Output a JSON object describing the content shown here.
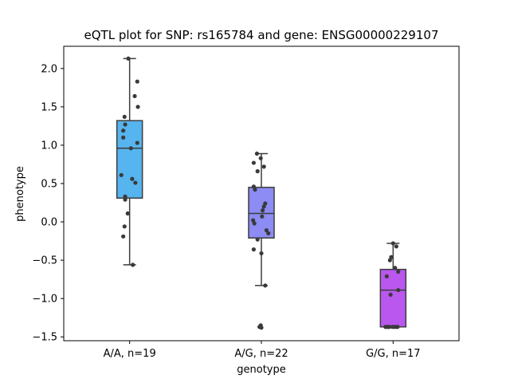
{
  "chart_data": {
    "type": "box",
    "title": "eQTL plot for SNP: rs165784 and gene: ENSG00000229107",
    "xlabel": "genotype",
    "ylabel": "phenotype",
    "categories": [
      "A/A, n=19",
      "A/G, n=22",
      "G/G, n=17"
    ],
    "ylim": [
      -1.55,
      2.29
    ],
    "yticks": [
      -1.5,
      -1.0,
      -0.5,
      0.0,
      0.5,
      1.0,
      1.5,
      2.0
    ],
    "ytick_labels": [
      "−1.5",
      "−1.0",
      "−0.5",
      "0.0",
      "0.5",
      "1.0",
      "1.5",
      "2.0"
    ],
    "grid": false,
    "legend": "none",
    "boxes": [
      {
        "category": "A/A, n=19",
        "color": "#56b4ee",
        "whisker_low": -0.56,
        "q1": 0.31,
        "median": 0.96,
        "q3": 1.32,
        "whisker_high": 2.13,
        "points": [
          {
            "x": -0.02,
            "y": 2.13
          },
          {
            "x": 0.12,
            "y": 1.83
          },
          {
            "x": 0.08,
            "y": 1.64
          },
          {
            "x": 0.13,
            "y": 1.5
          },
          {
            "x": -0.08,
            "y": 1.37
          },
          {
            "x": -0.07,
            "y": 1.27
          },
          {
            "x": -0.1,
            "y": 1.19
          },
          {
            "x": -0.1,
            "y": 1.1
          },
          {
            "x": 0.12,
            "y": 1.03
          },
          {
            "x": 0.02,
            "y": 0.96
          },
          {
            "x": -0.13,
            "y": 0.61
          },
          {
            "x": 0.04,
            "y": 0.56
          },
          {
            "x": 0.09,
            "y": 0.51
          },
          {
            "x": -0.07,
            "y": 0.33
          },
          {
            "x": -0.07,
            "y": 0.29
          },
          {
            "x": -0.03,
            "y": 0.11
          },
          {
            "x": -0.08,
            "y": -0.06
          },
          {
            "x": -0.1,
            "y": -0.19
          },
          {
            "x": 0.05,
            "y": -0.56
          }
        ]
      },
      {
        "category": "A/G, n=22",
        "color": "#8c8cf4",
        "whisker_low": -0.83,
        "q1": -0.21,
        "median": 0.11,
        "q3": 0.45,
        "whisker_high": 0.89,
        "points": [
          {
            "x": -0.07,
            "y": 0.89
          },
          {
            "x": -0.01,
            "y": 0.83
          },
          {
            "x": -0.12,
            "y": 0.77
          },
          {
            "x": 0.04,
            "y": 0.72
          },
          {
            "x": -0.06,
            "y": 0.66
          },
          {
            "x": -0.12,
            "y": 0.46
          },
          {
            "x": -0.1,
            "y": 0.42
          },
          {
            "x": 0.06,
            "y": 0.24
          },
          {
            "x": 0.04,
            "y": 0.2
          },
          {
            "x": 0.02,
            "y": 0.15
          },
          {
            "x": 0.01,
            "y": 0.07
          },
          {
            "x": -0.13,
            "y": 0.02
          },
          {
            "x": -0.11,
            "y": -0.02
          },
          {
            "x": 0.08,
            "y": -0.11
          },
          {
            "x": 0.11,
            "y": -0.15
          },
          {
            "x": -0.06,
            "y": -0.23
          },
          {
            "x": -0.12,
            "y": -0.36
          },
          {
            "x": 0.0,
            "y": -0.41
          },
          {
            "x": 0.06,
            "y": -0.83
          },
          {
            "x": -0.01,
            "y": -1.35
          },
          {
            "x": -0.03,
            "y": -1.37
          },
          {
            "x": 0.0,
            "y": -1.38
          }
        ]
      },
      {
        "category": "G/G, n=17",
        "color": "#b957ee",
        "whisker_low": -1.37,
        "q1": -1.37,
        "median": -0.89,
        "q3": -0.62,
        "whisker_high": -0.28,
        "points": [
          {
            "x": 0.0,
            "y": -0.28
          },
          {
            "x": 0.05,
            "y": -0.32
          },
          {
            "x": -0.03,
            "y": -0.46
          },
          {
            "x": -0.05,
            "y": -0.5
          },
          {
            "x": 0.03,
            "y": -0.6
          },
          {
            "x": 0.08,
            "y": -0.65
          },
          {
            "x": -0.1,
            "y": -0.71
          },
          {
            "x": 0.08,
            "y": -0.89
          },
          {
            "x": -0.04,
            "y": -0.95
          },
          {
            "x": -0.12,
            "y": -1.37
          },
          {
            "x": -0.1,
            "y": -1.37
          },
          {
            "x": -0.08,
            "y": -1.37
          },
          {
            "x": -0.06,
            "y": -1.37
          },
          {
            "x": -0.01,
            "y": -1.37
          },
          {
            "x": 0.02,
            "y": -1.37
          },
          {
            "x": 0.05,
            "y": -1.37
          },
          {
            "x": 0.07,
            "y": -1.37
          }
        ]
      }
    ]
  }
}
